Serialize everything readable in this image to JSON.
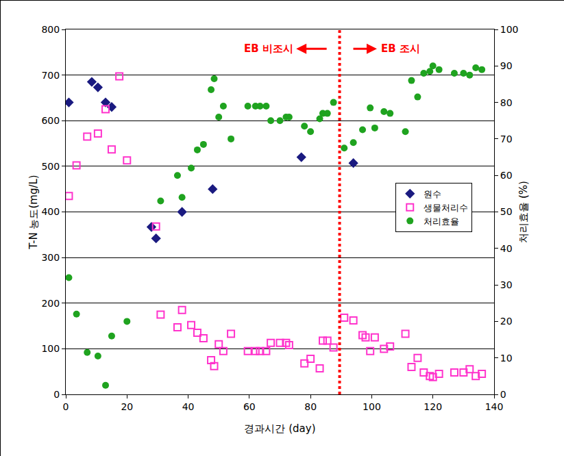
{
  "chart_data": {
    "type": "scatter",
    "x_label": "경과시간 (day)",
    "y_label": "T-N 농도(mg/L)",
    "y2_label": "처리효율 (%)",
    "xlim": [
      0,
      140
    ],
    "xticks": [
      0,
      20,
      40,
      60,
      80,
      100,
      120,
      140
    ],
    "ylim": [
      0,
      800
    ],
    "yticks": [
      0,
      100,
      200,
      300,
      400,
      500,
      600,
      700,
      800
    ],
    "y2lim": [
      0,
      100
    ],
    "y2ticks": [
      0,
      10,
      20,
      30,
      40,
      50,
      60,
      70,
      80,
      90,
      100
    ],
    "grid": true,
    "legend": "right",
    "divider": {
      "x": 89.5,
      "color": "#ff0000",
      "line_style": "dot"
    },
    "annotations": [
      {
        "text": "EB 비조시",
        "arrow": "left",
        "color": "#ff0000"
      },
      {
        "text": "EB 조시",
        "arrow": "right",
        "color": "#ff0000"
      }
    ],
    "series": [
      {
        "name": "원수",
        "color": "#1a1a80",
        "marker": "diamond",
        "axis": "y",
        "x": [
          1,
          8.5,
          10.5,
          13,
          15,
          28,
          29.5,
          38,
          48,
          77,
          94
        ],
        "values": [
          640,
          685,
          673,
          640,
          630,
          367,
          342,
          400,
          450,
          520,
          507
        ]
      },
      {
        "name": "생물처리수",
        "color": "#ff33cc",
        "marker": "square-open",
        "axis": "y",
        "x": [
          1,
          3.5,
          7,
          10.5,
          13,
          15,
          17.5,
          20,
          29.5,
          31,
          36.5,
          38,
          41,
          43,
          45,
          47.5,
          48.5,
          50,
          51.5,
          54,
          59.5,
          62,
          63.5,
          65.5,
          67,
          70,
          72,
          73,
          78,
          80,
          83,
          84,
          85.5,
          87.5,
          91,
          94,
          97,
          98,
          99.5,
          101,
          104,
          106,
          111,
          113,
          115,
          117,
          119,
          120,
          122,
          127,
          130,
          132,
          134,
          136
        ],
        "values": [
          435,
          502,
          565,
          572,
          625,
          537,
          697,
          513,
          368,
          175,
          147,
          185,
          152,
          135,
          123,
          75,
          62,
          110,
          95,
          133,
          95,
          95,
          95,
          95,
          113,
          113,
          113,
          108,
          68,
          78,
          57,
          118,
          118,
          103,
          168,
          162,
          130,
          125,
          95,
          125,
          100,
          105,
          133,
          60,
          80,
          48,
          40,
          38,
          45,
          48,
          48,
          55,
          40,
          45
        ]
      },
      {
        "name": "처리효율",
        "color": "#1fa31f",
        "marker": "circle",
        "axis": "y2",
        "x": [
          1,
          3.5,
          7,
          10.5,
          13,
          15,
          20,
          31,
          36.5,
          38,
          41,
          43,
          45,
          47.5,
          48.5,
          50,
          51.5,
          54,
          59.5,
          62,
          63.5,
          65.5,
          67,
          70,
          72,
          73,
          78,
          80,
          83,
          84,
          85.5,
          87.5,
          91,
          94,
          97,
          99.5,
          101,
          104,
          106,
          111,
          113,
          115,
          117,
          119,
          120,
          122,
          127,
          130,
          132,
          134,
          136
        ],
        "values": [
          32,
          22,
          11.5,
          10.5,
          2.5,
          16,
          20,
          53,
          60,
          54,
          62,
          67,
          68.5,
          83.5,
          86.5,
          76,
          79,
          70,
          79,
          79,
          79,
          79,
          75,
          75,
          76,
          76,
          73.5,
          72,
          75.5,
          77,
          77,
          80,
          67.5,
          69,
          72.5,
          78.5,
          73,
          77.5,
          77,
          72,
          86,
          81.5,
          88,
          88.5,
          90,
          89,
          88,
          88,
          87.5,
          89.5,
          89
        ]
      }
    ]
  }
}
